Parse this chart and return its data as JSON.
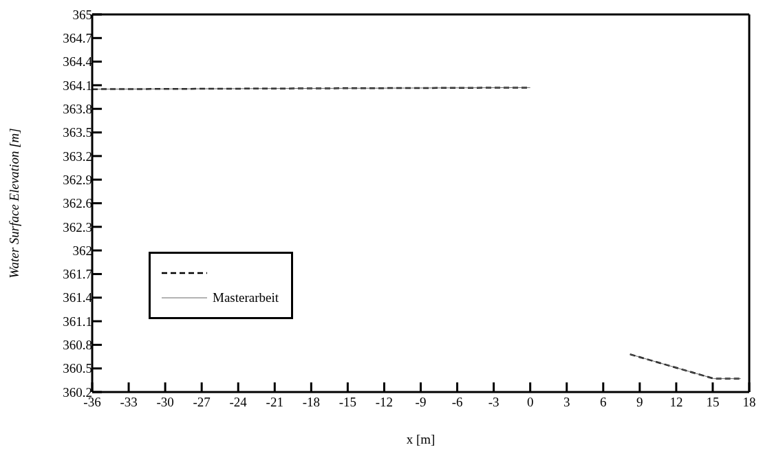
{
  "chart_data": {
    "type": "line",
    "xlabel": "x [m]",
    "ylabel": "Water Surface Elevation  [m]",
    "x": [
      -36,
      0,
      4,
      8.2,
      15.1,
      17.3
    ],
    "series": [
      {
        "color": "#000000",
        "line_style": "dashed",
        "values": [
          364.05,
          364.07,
          null,
          360.68,
          360.37,
          360.37
        ]
      },
      {
        "name": "Masterarbeit",
        "color": "#666666",
        "line_style": "solid",
        "values": [
          364.05,
          364.07,
          null,
          360.68,
          360.37,
          360.37
        ]
      }
    ],
    "xlim": [
      -36,
      18
    ],
    "xticks": [
      -36,
      -33,
      -30,
      -27,
      -24,
      -21,
      -18,
      -15,
      -12,
      -9,
      -6,
      -3,
      0,
      3,
      6,
      9,
      12,
      15,
      18
    ],
    "ylim": [
      360.2,
      365
    ],
    "yticks": [
      360.2,
      360.5,
      360.8,
      361.1,
      361.4,
      361.7,
      362,
      362.3,
      362.6,
      362.9,
      363.2,
      363.5,
      363.8,
      364.1,
      364.4,
      364.7,
      365
    ],
    "grid": false,
    "legend": "bottom left",
    "marker": "none"
  }
}
